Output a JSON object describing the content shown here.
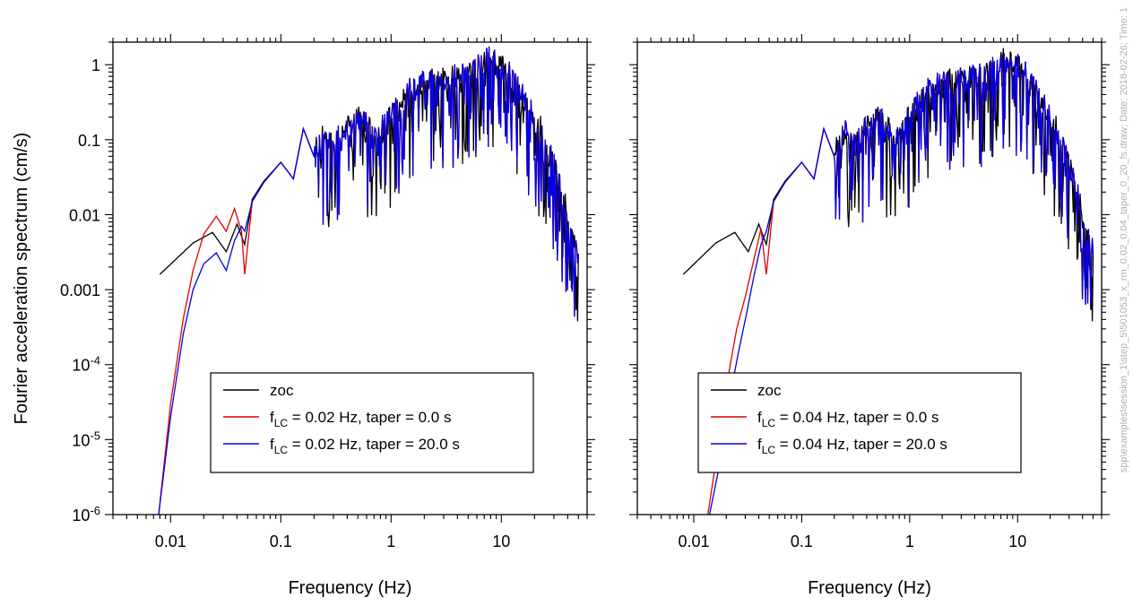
{
  "figure": {
    "side_note": "spp\\examples\\session_1\\step_5\\501053_x_rm_0.02_0.04_taper_0_20_fs.draw; Date: 2018-02-26; Time: 1"
  },
  "chart_data": [
    {
      "type": "line",
      "xlabel": "Frequency (Hz)",
      "ylabel": "Fourier acceleration spectrum (cm/s)",
      "x_scale": "log",
      "y_scale": "log",
      "xlim": [
        0.003,
        60
      ],
      "ylim": [
        1e-06,
        2
      ],
      "x_tick_labels": [
        "0.01",
        "0.1",
        "1",
        "10"
      ],
      "y_tick_labels": [
        "1",
        "0.1",
        "0.01",
        "0.001",
        "10-4",
        "10-5",
        "10-6"
      ],
      "legend_placement": "lower-right",
      "grid": false,
      "series": [
        {
          "name": "zoc",
          "color": "#000000",
          "x": [
            0.008,
            0.016,
            0.024,
            0.032,
            0.04,
            0.047,
            0.055,
            0.07,
            0.1,
            0.13,
            0.16,
            0.2,
            0.25,
            0.3,
            0.4,
            0.5,
            0.7,
            1.0,
            1.5,
            2.0,
            3.0,
            5.0,
            8.0,
            12.0,
            18.0,
            25.0,
            35.0,
            50.0
          ],
          "y": [
            0.0016,
            0.0042,
            0.0058,
            0.0032,
            0.0075,
            0.004,
            0.016,
            0.028,
            0.05,
            0.03,
            0.14,
            0.06,
            0.12,
            0.09,
            0.13,
            0.22,
            0.1,
            0.2,
            0.45,
            0.55,
            0.6,
            0.7,
            1.2,
            0.7,
            0.25,
            0.1,
            0.02,
            0.003
          ]
        },
        {
          "name": "fLC = 0.02 Hz, taper = 0.0 s",
          "color": "#e00000",
          "x": [
            0.0078,
            0.01,
            0.013,
            0.016,
            0.02,
            0.026,
            0.032,
            0.038,
            0.044,
            0.047,
            0.055,
            0.07,
            0.1,
            0.13,
            0.16,
            0.2,
            0.25,
            0.3,
            0.4,
            0.5,
            0.7,
            1.0,
            1.5,
            2.0,
            3.0,
            5.0,
            8.0,
            12.0,
            18.0,
            25.0,
            35.0,
            50.0
          ],
          "y": [
            1e-06,
            3e-05,
            0.0004,
            0.0018,
            0.0055,
            0.0095,
            0.006,
            0.012,
            0.006,
            0.0016,
            0.015,
            0.027,
            0.05,
            0.03,
            0.14,
            0.06,
            0.12,
            0.09,
            0.13,
            0.22,
            0.1,
            0.2,
            0.45,
            0.55,
            0.6,
            0.7,
            1.2,
            0.7,
            0.25,
            0.1,
            0.02,
            0.003
          ]
        },
        {
          "name": "fLC = 0.02 Hz, taper = 20.0 s",
          "color": "#0000e0",
          "x": [
            0.0078,
            0.01,
            0.013,
            0.016,
            0.02,
            0.026,
            0.032,
            0.038,
            0.044,
            0.047,
            0.055,
            0.07,
            0.1,
            0.13,
            0.16,
            0.2,
            0.25,
            0.3,
            0.4,
            0.5,
            0.7,
            1.0,
            1.5,
            2.0,
            3.0,
            5.0,
            8.0,
            12.0,
            18.0,
            25.0,
            35.0,
            50.0
          ],
          "y": [
            1e-06,
            2e-05,
            0.00025,
            0.001,
            0.0022,
            0.0031,
            0.0018,
            0.0045,
            0.007,
            0.006,
            0.015,
            0.027,
            0.05,
            0.03,
            0.14,
            0.06,
            0.12,
            0.09,
            0.13,
            0.22,
            0.1,
            0.2,
            0.45,
            0.55,
            0.6,
            0.7,
            1.2,
            0.7,
            0.25,
            0.1,
            0.02,
            0.003
          ]
        }
      ]
    },
    {
      "type": "line",
      "xlabel": "Frequency (Hz)",
      "ylabel": "",
      "x_scale": "log",
      "y_scale": "log",
      "xlim": [
        0.003,
        60
      ],
      "ylim": [
        1e-06,
        2
      ],
      "x_tick_labels": [
        "0.01",
        "0.1",
        "1",
        "10"
      ],
      "y_tick_labels": [],
      "legend_placement": "lower-right",
      "grid": false,
      "series": [
        {
          "name": "zoc",
          "color": "#000000",
          "x": [
            0.008,
            0.016,
            0.024,
            0.032,
            0.04,
            0.047,
            0.055,
            0.07,
            0.1,
            0.13,
            0.16,
            0.2,
            0.25,
            0.3,
            0.4,
            0.5,
            0.7,
            1.0,
            1.5,
            2.0,
            3.0,
            5.0,
            8.0,
            12.0,
            18.0,
            25.0,
            35.0,
            50.0
          ],
          "y": [
            0.0016,
            0.0042,
            0.0058,
            0.0032,
            0.0075,
            0.004,
            0.016,
            0.028,
            0.05,
            0.03,
            0.14,
            0.06,
            0.12,
            0.09,
            0.13,
            0.22,
            0.1,
            0.2,
            0.45,
            0.55,
            0.6,
            0.7,
            1.2,
            0.7,
            0.25,
            0.1,
            0.02,
            0.003
          ]
        },
        {
          "name": "fLC = 0.04 Hz, taper = 0.0 s",
          "color": "#e00000",
          "x": [
            0.0135,
            0.016,
            0.02,
            0.025,
            0.03,
            0.036,
            0.042,
            0.047,
            0.055,
            0.07,
            0.1,
            0.13,
            0.16,
            0.2,
            0.25,
            0.3,
            0.4,
            0.5,
            0.7,
            1.0,
            1.5,
            2.0,
            3.0,
            5.0,
            8.0,
            12.0,
            18.0,
            25.0,
            35.0,
            50.0
          ],
          "y": [
            1e-06,
            5e-06,
            5e-05,
            0.0003,
            0.0008,
            0.0025,
            0.0065,
            0.0016,
            0.015,
            0.027,
            0.05,
            0.03,
            0.14,
            0.06,
            0.12,
            0.09,
            0.13,
            0.22,
            0.1,
            0.2,
            0.45,
            0.55,
            0.6,
            0.7,
            1.2,
            0.7,
            0.25,
            0.1,
            0.02,
            0.003
          ]
        },
        {
          "name": "fLC = 0.04 Hz, taper = 20.0 s",
          "color": "#0000e0",
          "x": [
            0.014,
            0.017,
            0.021,
            0.026,
            0.031,
            0.036,
            0.042,
            0.047,
            0.055,
            0.07,
            0.1,
            0.13,
            0.16,
            0.2,
            0.25,
            0.3,
            0.4,
            0.5,
            0.7,
            1.0,
            1.5,
            2.0,
            3.0,
            5.0,
            8.0,
            12.0,
            18.0,
            25.0,
            35.0,
            50.0
          ],
          "y": [
            1e-06,
            4e-06,
            3e-05,
            0.00015,
            0.0005,
            0.0015,
            0.004,
            0.006,
            0.015,
            0.027,
            0.05,
            0.03,
            0.14,
            0.06,
            0.12,
            0.09,
            0.13,
            0.22,
            0.1,
            0.2,
            0.45,
            0.55,
            0.6,
            0.7,
            1.2,
            0.7,
            0.25,
            0.1,
            0.02,
            0.003
          ]
        }
      ]
    }
  ]
}
